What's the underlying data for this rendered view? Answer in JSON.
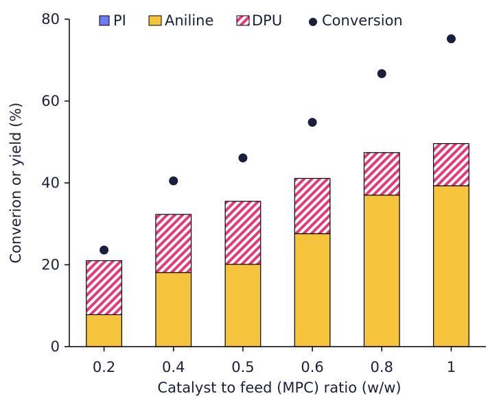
{
  "chart_data": {
    "type": "bar",
    "stacked": true,
    "xlabel": "Catalyst to feed (MPC) ratio (w/w)",
    "ylabel": "Converion or yield (%)",
    "ylim": [
      0,
      80
    ],
    "yticks": [
      0,
      20,
      40,
      60,
      80
    ],
    "categories": [
      "0.2",
      "0.4",
      "0.5",
      "0.6",
      "0.8",
      "1"
    ],
    "series": [
      {
        "name": "PI",
        "kind": "bar",
        "color": "#6d7cf5",
        "values": [
          0,
          0,
          0,
          0,
          0,
          0
        ]
      },
      {
        "name": "Aniline",
        "kind": "bar",
        "color": "#f5c43c",
        "values": [
          7.8,
          18.1,
          20.1,
          27.6,
          37.0,
          39.3
        ]
      },
      {
        "name": "DPU",
        "kind": "bar",
        "color": "#e8387a",
        "pattern": "hatch",
        "values": [
          13.2,
          14.2,
          15.4,
          13.5,
          10.4,
          10.3
        ]
      },
      {
        "name": "Conversion",
        "kind": "scatter",
        "color": "#1a1f3c",
        "values": [
          23.6,
          40.5,
          46.1,
          54.8,
          66.7,
          75.2
        ]
      }
    ],
    "legend": {
      "placement": "top",
      "entries": [
        "PI",
        "Aniline",
        "DPU",
        "Conversion"
      ]
    },
    "grid": false
  }
}
